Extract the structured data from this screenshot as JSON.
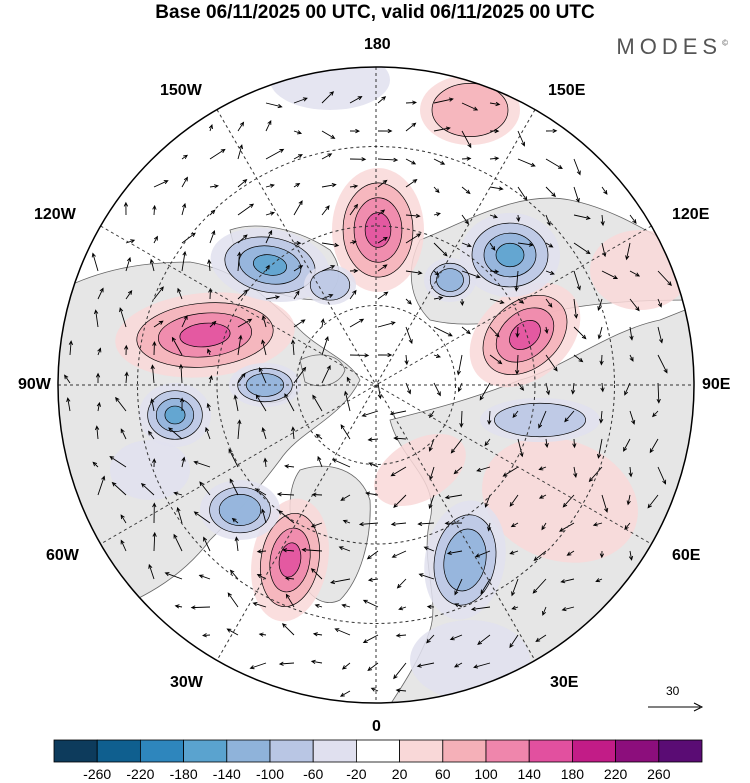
{
  "title": "Base 06/11/2025 00 UTC, valid 06/11/2025 00 UTC",
  "brand": "MODES",
  "brand_mark": "©",
  "longitude_labels": {
    "top": "180",
    "bottom": "0",
    "left": "90W",
    "right": "90E",
    "upper_left_1": "150W",
    "upper_left_2": "120W",
    "upper_right_1": "150E",
    "upper_right_2": "120E",
    "lower_left_1": "60W",
    "lower_left_2": "30W",
    "lower_right_1": "60E",
    "lower_right_2": "30E"
  },
  "reference_vector": "30",
  "colorbar": {
    "labels": [
      "-260",
      "-220",
      "-180",
      "-140",
      "-100",
      "-60",
      "-20",
      "20",
      "60",
      "100",
      "140",
      "180",
      "220",
      "260"
    ],
    "colors": [
      "#0d3b5c",
      "#0f5f8f",
      "#2e86bd",
      "#5aa3cf",
      "#8fb3da",
      "#b9c6e4",
      "#e0e0ef",
      "#ffffff",
      "#f9d8d8",
      "#f5b0b8",
      "#ef86ac",
      "#e2509f",
      "#c21c87",
      "#8c0e7c",
      "#5a0c74"
    ]
  },
  "colors": {
    "land": "#e8e8e8",
    "ocean": "#ffffff",
    "coast": "#555555",
    "grid": "#333333"
  }
}
